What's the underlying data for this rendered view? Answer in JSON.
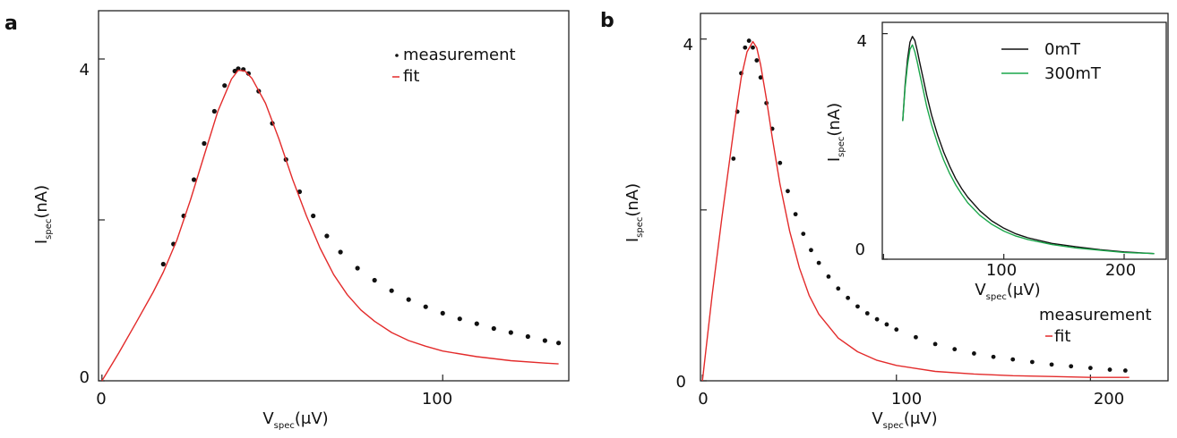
{
  "chart_data": [
    {
      "panel": "a",
      "type": "scatter",
      "xlabel": {
        "main": "V",
        "sub": "spec",
        "unit": "(μV)"
      },
      "ylabel": {
        "main": "I",
        "sub": "spec",
        "unit": "(nA)"
      },
      "xlim": [
        -1,
        137
      ],
      "ylim": [
        0,
        4.6
      ],
      "xticks": [
        0,
        100
      ],
      "yticks": [
        0,
        4
      ],
      "yticks_unlabeled": [
        2
      ],
      "legend": {
        "placement": "top-right",
        "measurement": "measurement",
        "fit": "fit"
      },
      "series": [
        {
          "name": "measurement",
          "kind": "points",
          "color": "#111111",
          "x": [
            18,
            21,
            24,
            27,
            30,
            33,
            36,
            39,
            40,
            41.5,
            43,
            46,
            50,
            54,
            58,
            62,
            66,
            70,
            75,
            80,
            85,
            90,
            95,
            100,
            105,
            110,
            115,
            120,
            125,
            130,
            134
          ],
          "y": [
            1.45,
            1.7,
            2.05,
            2.5,
            2.95,
            3.35,
            3.67,
            3.85,
            3.88,
            3.87,
            3.82,
            3.6,
            3.2,
            2.75,
            2.35,
            2.05,
            1.8,
            1.6,
            1.4,
            1.25,
            1.12,
            1.01,
            0.92,
            0.84,
            0.77,
            0.71,
            0.65,
            0.6,
            0.55,
            0.5,
            0.47
          ]
        },
        {
          "name": "fit",
          "kind": "line",
          "color": "#e32b2b",
          "x": [
            0,
            5,
            10,
            15,
            18,
            22,
            26,
            30,
            34,
            38,
            40,
            42,
            44,
            48,
            52,
            56,
            60,
            64,
            68,
            72,
            76,
            80,
            85,
            90,
            95,
            100,
            110,
            120,
            130,
            134
          ],
          "y": [
            0,
            0.35,
            0.72,
            1.1,
            1.35,
            1.75,
            2.25,
            2.8,
            3.35,
            3.75,
            3.86,
            3.85,
            3.76,
            3.45,
            3.0,
            2.5,
            2.05,
            1.65,
            1.32,
            1.07,
            0.88,
            0.74,
            0.6,
            0.5,
            0.43,
            0.37,
            0.3,
            0.25,
            0.22,
            0.21
          ]
        }
      ]
    },
    {
      "panel": "b",
      "type": "scatter",
      "xlabel": {
        "main": "V",
        "sub": "spec",
        "unit": "(μV)"
      },
      "ylabel": {
        "main": "I",
        "sub": "spec",
        "unit": "(nA)"
      },
      "xlim": [
        -1,
        240
      ],
      "ylim": [
        0,
        4.3
      ],
      "xticks": [
        0,
        100,
        200
      ],
      "yticks": [
        0,
        4
      ],
      "yticks_unlabeled": [
        2
      ],
      "legend": {
        "placement": "lower-right",
        "measurement": "measurement",
        "fit": "fit"
      },
      "series": [
        {
          "name": "measurement",
          "kind": "points",
          "color": "#111111",
          "x": [
            16,
            18,
            20,
            22,
            24,
            26,
            28,
            30,
            33,
            36,
            40,
            44,
            48,
            52,
            56,
            60,
            65,
            70,
            75,
            80,
            85,
            90,
            95,
            100,
            110,
            120,
            130,
            140,
            150,
            160,
            170,
            180,
            190,
            200,
            210,
            218
          ],
          "y": [
            2.6,
            3.15,
            3.6,
            3.9,
            3.98,
            3.9,
            3.75,
            3.55,
            3.25,
            2.95,
            2.55,
            2.22,
            1.95,
            1.72,
            1.53,
            1.38,
            1.22,
            1.08,
            0.97,
            0.87,
            0.79,
            0.72,
            0.66,
            0.6,
            0.51,
            0.43,
            0.37,
            0.32,
            0.28,
            0.25,
            0.22,
            0.19,
            0.17,
            0.15,
            0.13,
            0.12
          ]
        },
        {
          "name": "fit",
          "kind": "line",
          "color": "#e32b2b",
          "x": [
            0,
            2,
            5,
            10,
            15,
            18,
            20,
            23,
            26,
            28,
            30,
            33,
            36,
            40,
            45,
            50,
            55,
            60,
            70,
            80,
            90,
            100,
            120,
            140,
            160,
            180,
            200,
            220
          ],
          "y": [
            0,
            0.4,
            1.0,
            1.9,
            2.75,
            3.25,
            3.55,
            3.85,
            3.97,
            3.9,
            3.7,
            3.3,
            2.85,
            2.3,
            1.75,
            1.32,
            1.0,
            0.78,
            0.5,
            0.34,
            0.24,
            0.18,
            0.11,
            0.08,
            0.06,
            0.05,
            0.04,
            0.04
          ]
        }
      ]
    },
    {
      "panel": "b-inset",
      "type": "line",
      "xlabel": {
        "main": "V",
        "sub": "spec",
        "unit": "(μV)"
      },
      "ylabel": {
        "main": "I",
        "sub": "spec",
        "unit": "(nA)"
      },
      "xlim": [
        -1,
        235
      ],
      "ylim": [
        0,
        4.2
      ],
      "xticks": [
        0,
        100,
        200
      ],
      "yticks": [
        0,
        4
      ],
      "legend": {
        "placement": "top-right"
      },
      "series": [
        {
          "name": "0mT",
          "kind": "line",
          "color": "#111111",
          "x": [
            16,
            18,
            20,
            22,
            24,
            26,
            28,
            30,
            33,
            36,
            40,
            45,
            50,
            55,
            60,
            65,
            70,
            80,
            90,
            100,
            110,
            120,
            140,
            160,
            180,
            200,
            225
          ],
          "y": [
            2.45,
            3.1,
            3.55,
            3.85,
            3.95,
            3.88,
            3.7,
            3.5,
            3.2,
            2.9,
            2.55,
            2.2,
            1.9,
            1.65,
            1.43,
            1.25,
            1.1,
            0.86,
            0.68,
            0.55,
            0.45,
            0.38,
            0.28,
            0.22,
            0.17,
            0.13,
            0.1
          ]
        },
        {
          "name": "300mT",
          "kind": "line",
          "color": "#1aa64a",
          "x": [
            16,
            18,
            20,
            22,
            24,
            26,
            28,
            30,
            33,
            36,
            40,
            45,
            50,
            55,
            60,
            65,
            70,
            80,
            90,
            100,
            110,
            120,
            140,
            160,
            180,
            200,
            225
          ],
          "y": [
            2.45,
            3.05,
            3.45,
            3.72,
            3.8,
            3.68,
            3.5,
            3.3,
            3.0,
            2.7,
            2.38,
            2.05,
            1.76,
            1.52,
            1.32,
            1.15,
            1.0,
            0.78,
            0.62,
            0.5,
            0.41,
            0.35,
            0.26,
            0.2,
            0.16,
            0.12,
            0.1
          ]
        }
      ]
    }
  ]
}
